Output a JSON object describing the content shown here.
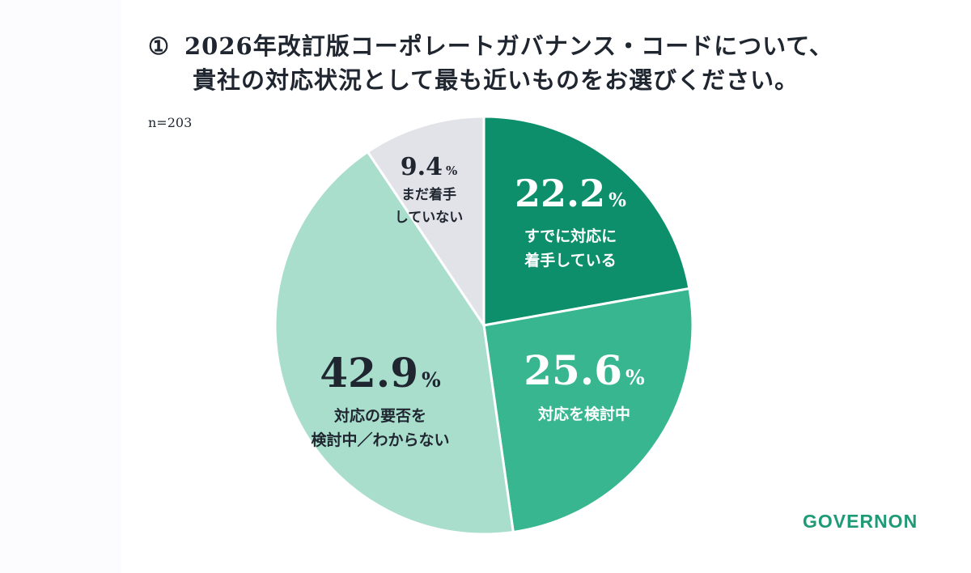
{
  "title": {
    "number": "①",
    "line1": "2026年改訂版コーポレートガバナンス・コードについて、",
    "line2": "貴社の対応状況として最も近いものをお選びください。"
  },
  "sample_size": "n=203",
  "brand": "GOVERNON",
  "chart_data": {
    "type": "pie",
    "title": "2026年改訂版コーポレートガバナンス・コードについて、貴社の対応状況として最も近いものをお選びください。",
    "n": 203,
    "unit": "%",
    "slices": [
      {
        "label": "すでに対応に着手している",
        "label_lines": [
          "すでに対応に",
          "着手している"
        ],
        "value": 22.2,
        "value_text": "22.2",
        "color": "#0e8f6c",
        "text_color": "#ffffff"
      },
      {
        "label": "対応を検討中",
        "label_lines": [
          "対応を検討中"
        ],
        "value": 25.6,
        "value_text": "25.6",
        "color": "#37b68f",
        "text_color": "#ffffff"
      },
      {
        "label": "対応の要否を検討中／わからない",
        "label_lines": [
          "対応の要否を",
          "検討中／わからない"
        ],
        "value": 42.9,
        "value_text": "42.9",
        "color": "#a9decd",
        "text_color": "#1f2630"
      },
      {
        "label": "まだ着手していない",
        "label_lines": [
          "まだ着手",
          "していない"
        ],
        "value": 9.4,
        "value_text": "9.4",
        "color": "#e2e3e8",
        "text_color": "#1f2630"
      }
    ]
  }
}
